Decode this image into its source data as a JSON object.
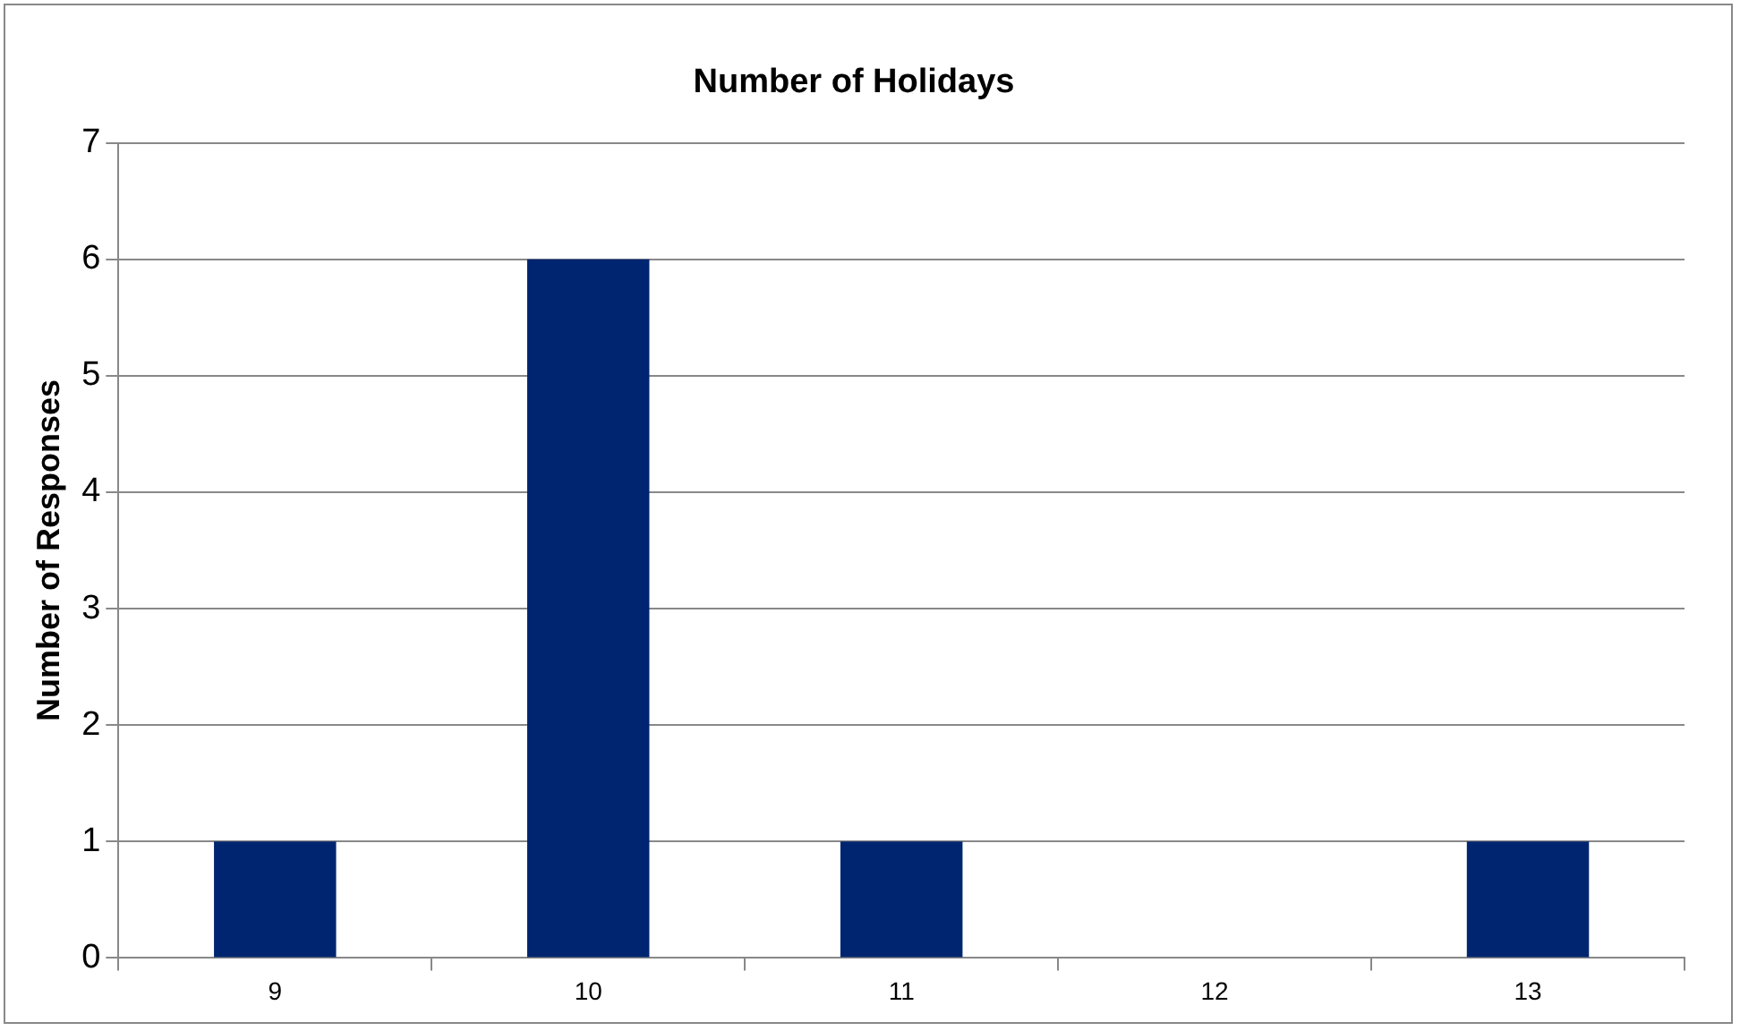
{
  "chart_data": {
    "type": "bar",
    "title": "Number of Holidays",
    "ylabel": "Number of Responses",
    "categories": [
      "9",
      "10",
      "11",
      "12",
      "13"
    ],
    "values": [
      1,
      6,
      1,
      0,
      1
    ],
    "color": "#002570",
    "ylim": [
      0,
      7
    ],
    "yticks": [
      0,
      1,
      2,
      3,
      4,
      5,
      6,
      7
    ],
    "grid": "y",
    "legend": false
  }
}
